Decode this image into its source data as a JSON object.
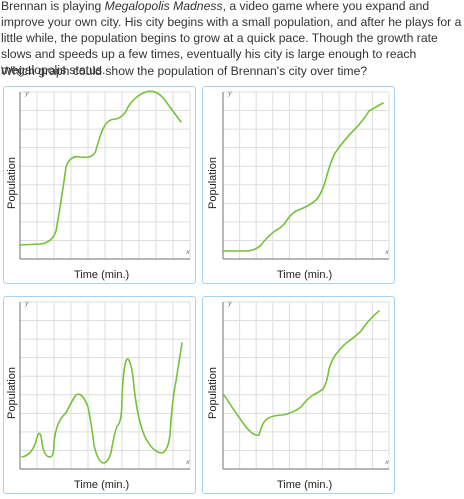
{
  "question": {
    "part1": "Brennan is playing ",
    "game_title": "Megalopolis Madness",
    "part2": ", a video game where you expand and improve your own city. His city begins with a small population, and after he plays for a little while, the population begins to grow at a quick pace. Though the growth rate slows and speeds up a few times, eventually his city is large enough to reach megalopolis status.",
    "prompt": "Which graph could show the population of Brennan's city over time?"
  },
  "graphs": [
    {
      "ylabel": "Population",
      "xlabel": "Time (min.)",
      "x_letter": "x",
      "y_letter": "y"
    },
    {
      "ylabel": "Population",
      "xlabel": "Time (min.)",
      "x_letter": "x",
      "y_letter": "y"
    },
    {
      "ylabel": "Population",
      "xlabel": "Time (min.)",
      "x_letter": "x",
      "y_letter": "y"
    },
    {
      "ylabel": "Population",
      "xlabel": "Time (min.)",
      "x_letter": "x",
      "y_letter": "y"
    }
  ],
  "colors": {
    "curve": "#77c13a",
    "border": "#a8d3ef",
    "grid": "#dddddd",
    "axis": "#8a8a8a"
  }
}
